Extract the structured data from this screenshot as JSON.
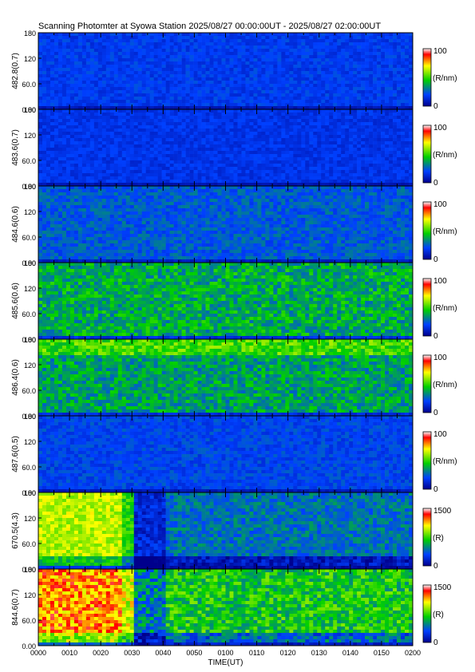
{
  "title": "Scanning Photomter at Syowa Station 2025/08/27 00:00:00UT - 2025/08/27 02:00:00UT",
  "chart_data": {
    "type": "heatmap",
    "title": "Scanning Photomter at Syowa Station 2025/08/27 00:00:00UT - 2025/08/27 02:00:00UT",
    "xlabel": "TIME(UT)",
    "x_tick_labels": [
      "0000",
      "0010",
      "0020",
      "0030",
      "0040",
      "0050",
      "0100",
      "0110",
      "0120",
      "0130",
      "0140",
      "0150",
      "0200"
    ],
    "xlim": [
      "0000",
      "0200"
    ],
    "y_tick_labels": [
      "0.00",
      "60.0",
      "120",
      "180"
    ],
    "ylim": [
      0,
      180
    ],
    "colors": {
      "low": "#00008c",
      "mid_low": "#0040ff",
      "mid": "#00d000",
      "mid_high": "#ffff00",
      "high": "#ff0000",
      "max": "#ffffff"
    },
    "panels": [
      {
        "name": "482.8(0.7)",
        "units": "(R/nm)",
        "cbar_min": "0",
        "cbar_max": "100",
        "mean_level": 0.18
      },
      {
        "name": "483.6(0.7)",
        "units": "(R/nm)",
        "cbar_min": "0",
        "cbar_max": "100",
        "mean_level": 0.16
      },
      {
        "name": "484.6(0.6)",
        "units": "(R/nm)",
        "cbar_min": "0",
        "cbar_max": "100",
        "mean_level": 0.24
      },
      {
        "name": "485.6(0.6)",
        "units": "(R/nm)",
        "cbar_min": "0",
        "cbar_max": "100",
        "mean_level": 0.38
      },
      {
        "name": "486.4(0.6)",
        "units": "(R/nm)",
        "cbar_min": "0",
        "cbar_max": "100",
        "mean_level": 0.36
      },
      {
        "name": "487.6(0.5)",
        "units": "(R/nm)",
        "cbar_min": "0",
        "cbar_max": "100",
        "mean_level": 0.2
      },
      {
        "name": "670.5(4.3)",
        "units": "(R)",
        "cbar_min": "0",
        "cbar_max": "1500",
        "mean_level": 0.28
      },
      {
        "name": "844.6(0.7)",
        "units": "(R)",
        "cbar_min": "0",
        "cbar_max": "1500",
        "mean_level": 0.45
      }
    ]
  }
}
